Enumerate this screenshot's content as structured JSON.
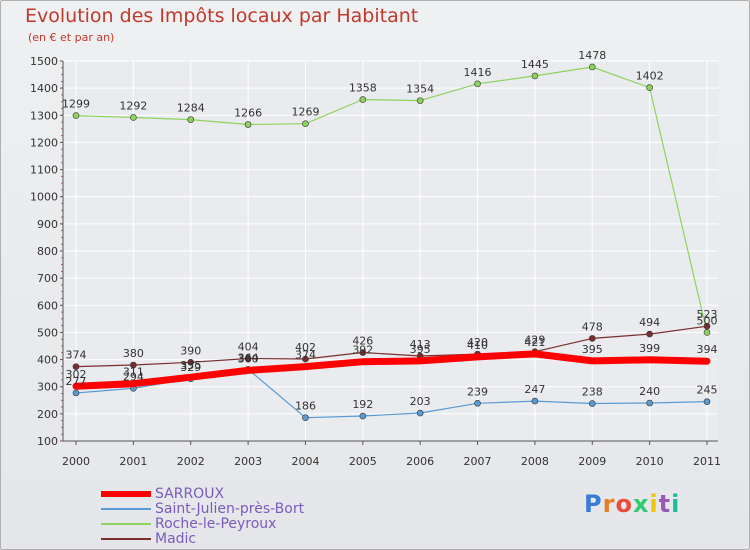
{
  "header": {
    "title": "Evolution des Impôts locaux par Habitant",
    "subtitle": "(en € et par an)"
  },
  "logo": {
    "text": "Proxiti",
    "colors": [
      "#3a7bd5",
      "#e67e22",
      "#e74c3c",
      "#2ecc71",
      "#f1c40f",
      "#9b59b6",
      "#1abc9c"
    ]
  },
  "chart_data": {
    "type": "line",
    "x": [
      "2000",
      "2001",
      "2002",
      "2003",
      "2004",
      "2005",
      "2006",
      "2007",
      "2008",
      "2009",
      "2010",
      "2011"
    ],
    "yticks": [
      100,
      200,
      300,
      400,
      500,
      600,
      700,
      800,
      900,
      1000,
      1100,
      1200,
      1300,
      1400,
      1500
    ],
    "ylim": [
      100,
      1500
    ],
    "grid": true,
    "legend": "bottom-left",
    "series": [
      {
        "name": "SARROUX",
        "color": "#ff0000",
        "width": 7,
        "marker": false,
        "values": [
          302,
          311,
          335,
          360,
          374,
          392,
          395,
          410,
          421,
          395,
          399,
          394
        ],
        "labels": [
          "302",
          "311",
          "335",
          "360",
          "374",
          "392",
          "395",
          "410",
          "421",
          "395",
          "399",
          "394"
        ]
      },
      {
        "name": "Saint-Julien-près-Bort",
        "color": "#5b9bd5",
        "width": 1.2,
        "marker": true,
        "values": [
          277,
          294,
          329,
          364,
          186,
          192,
          203,
          239,
          247,
          238,
          240,
          245
        ],
        "labels": [
          "277",
          "294",
          "329",
          "364",
          "186",
          "192",
          "203",
          "239",
          "247",
          "238",
          "240",
          "245"
        ]
      },
      {
        "name": "Roche-le-Peyroux",
        "color": "#8fd35f",
        "width": 1.2,
        "marker": true,
        "values": [
          1299,
          1292,
          1284,
          1266,
          1269,
          1358,
          1354,
          1416,
          1445,
          1478,
          1402,
          500
        ],
        "labels": [
          "1299",
          "1292",
          "1284",
          "1266",
          "1269",
          "1358",
          "1354",
          "1416",
          "1445",
          "1478",
          "1402",
          "500"
        ]
      },
      {
        "name": "Madic",
        "color": "#7a2e2e",
        "width": 1.2,
        "marker": true,
        "values": [
          374,
          380,
          390,
          404,
          402,
          426,
          413,
          420,
          429,
          478,
          494,
          523
        ],
        "labels": [
          "374",
          "380",
          "390",
          "404",
          "402",
          "426",
          "413",
          "420",
          "429",
          "478",
          "494",
          "523"
        ]
      }
    ]
  }
}
